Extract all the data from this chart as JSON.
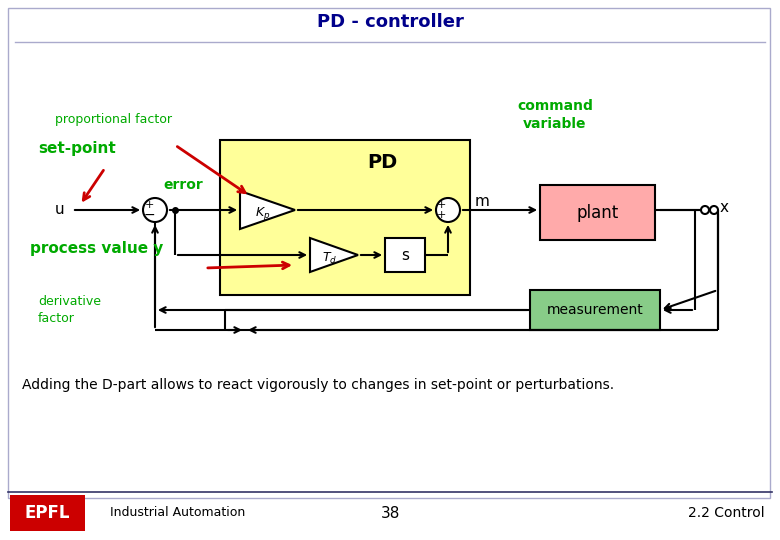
{
  "title": "PD - controller",
  "bg_color": "#ffffff",
  "border_color": "#aaaacc",
  "title_color": "#00008B",
  "green_color": "#00aa00",
  "red_color": "#cc0000",
  "yellow_fill": "#ffff99",
  "pink_fill": "#ffaaaa",
  "green_fill": "#88cc88",
  "white_fill": "#ffffff",
  "black": "#000000",
  "footer_text_left": "Industrial Automation",
  "footer_text_mid": "38",
  "footer_text_right": "2.2 Control",
  "footer_bar_color": "#cc0000",
  "bottom_text": "Adding the D-part allows to react vigorously to changes in set-point or perturbations."
}
